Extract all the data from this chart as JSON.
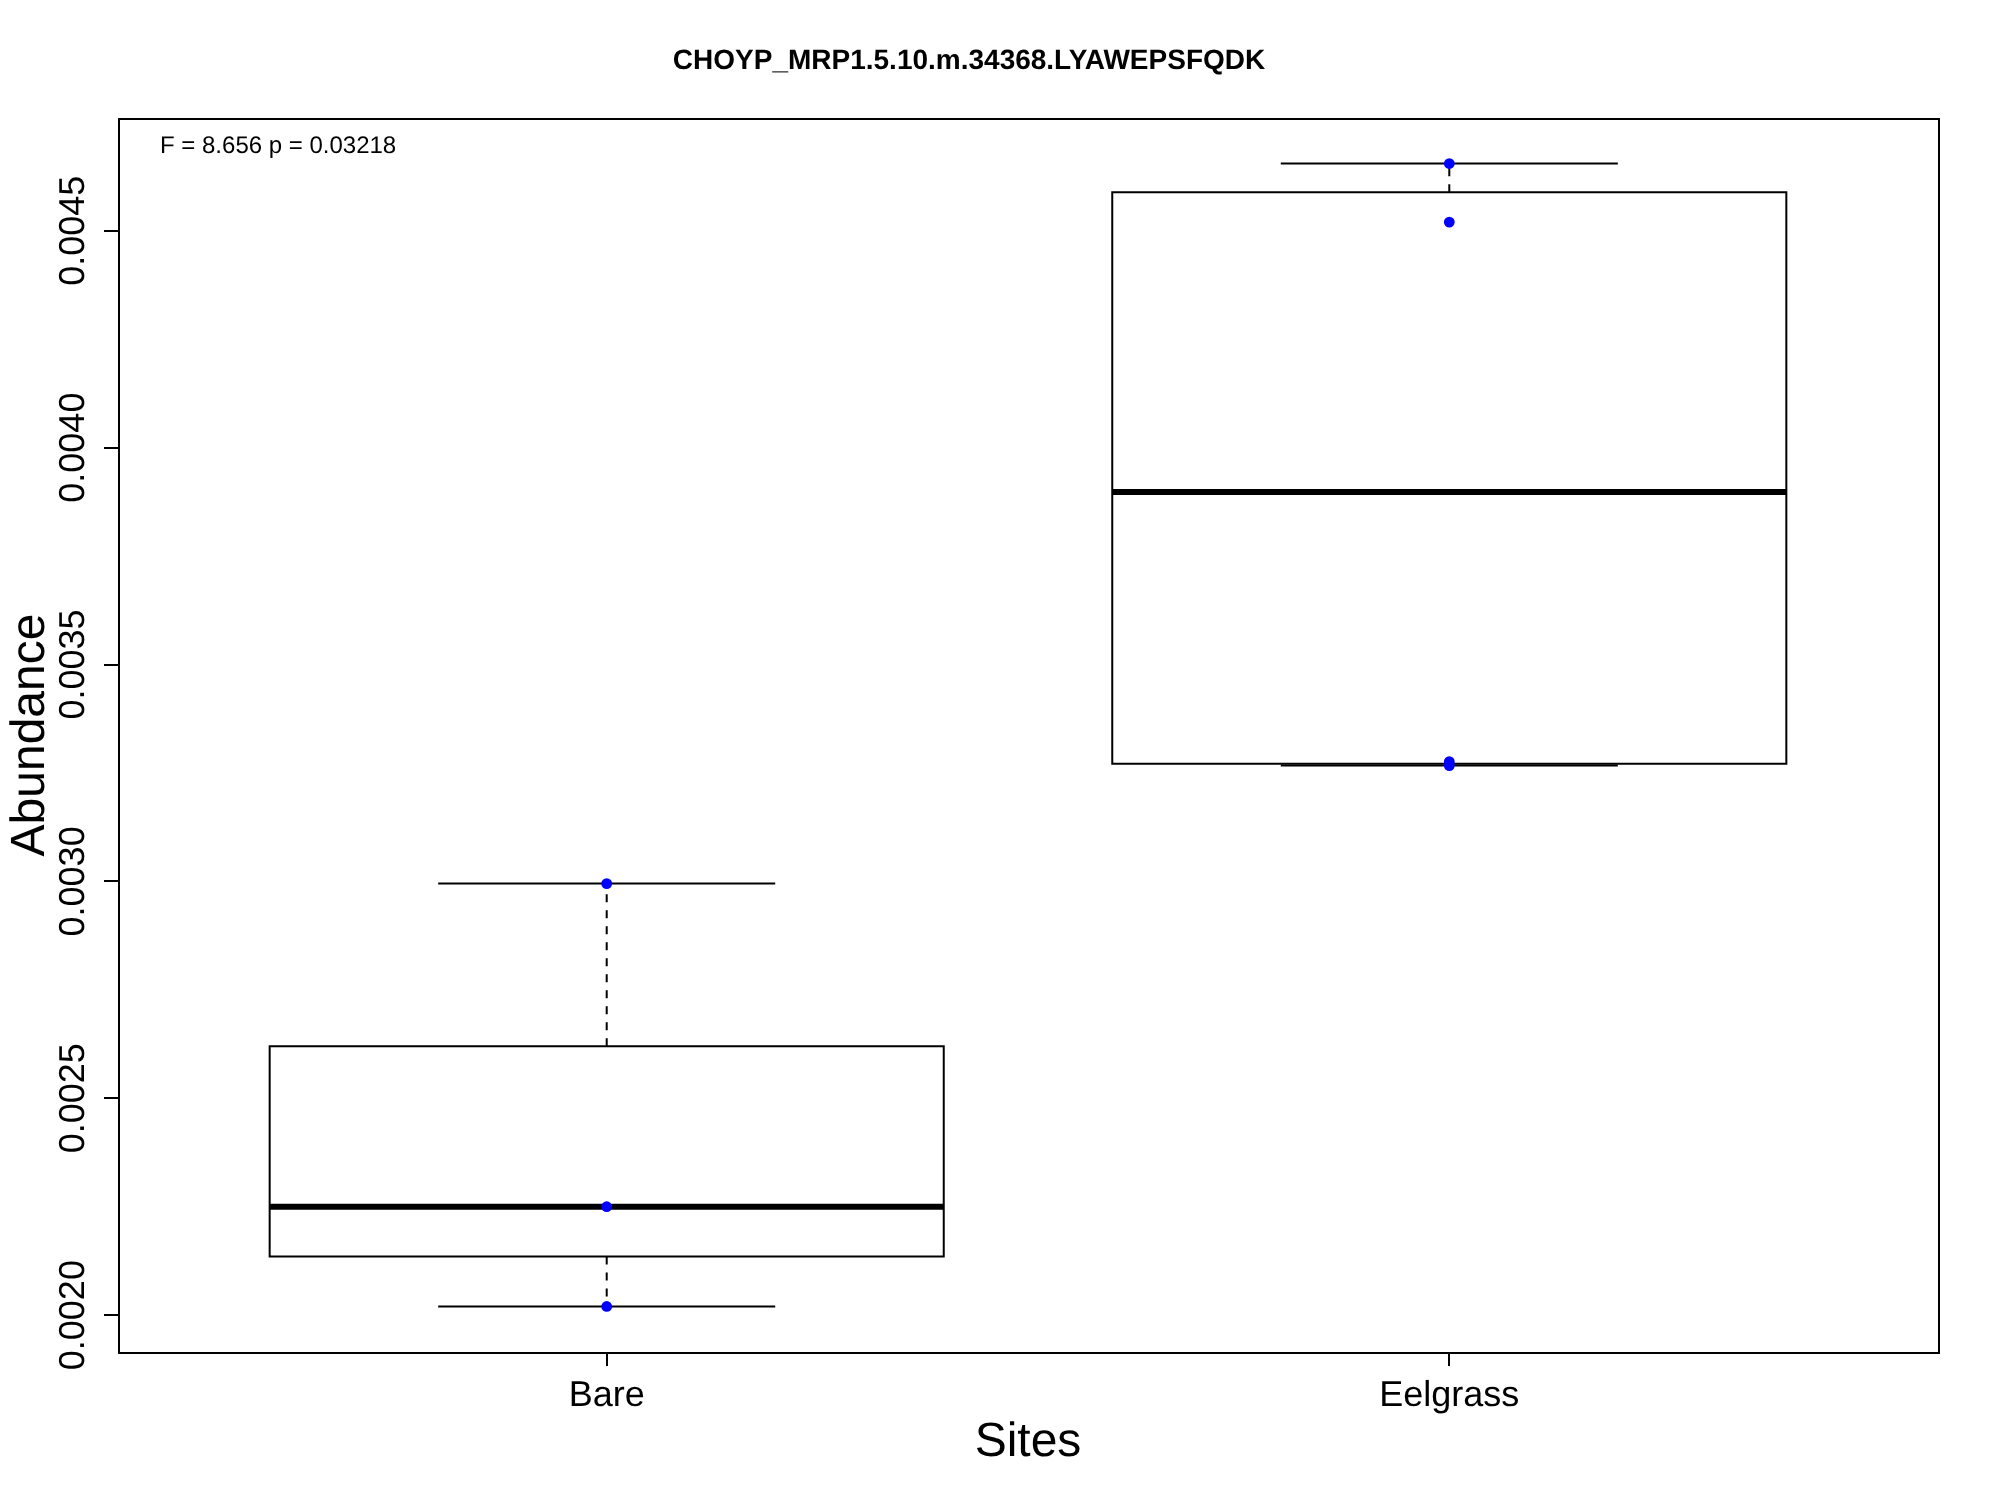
{
  "chart_data": {
    "type": "box",
    "title": "CHOYP_MRP1.5.10.m.34368.LYAWEPSFQDK",
    "xlabel": "Sites",
    "ylabel": "Abundance",
    "annotations": [
      "F = 8.656 p = 0.03218"
    ],
    "categories": [
      "Bare",
      "Eelgrass"
    ],
    "boxes": [
      {
        "low": 0.00202,
        "q1": 0.002135,
        "median": 0.00225,
        "q3": 0.00262,
        "high": 0.002995
      },
      {
        "low": 0.003267,
        "q1": 0.003271,
        "median": 0.003898,
        "q3": 0.004589,
        "high": 0.004655
      }
    ],
    "series": [
      {
        "type": "scatter",
        "color": "#0000ff",
        "x": [
          "Bare",
          "Bare",
          "Bare",
          "Eelgrass",
          "Eelgrass",
          "Eelgrass",
          "Eelgrass"
        ],
        "values": [
          0.002995,
          0.00225,
          0.00202,
          0.004655,
          0.00452,
          0.003267,
          0.003276
        ]
      }
    ],
    "marker": "circle",
    "ylim": [
      0.001915,
      0.00476
    ],
    "yticks": [
      {
        "value": 0.002,
        "label": "0.0020"
      },
      0.0025,
      {
        "value": 0.003,
        "label": "0.0030"
      },
      0.0035,
      {
        "value": 0.004,
        "label": "0.0040"
      },
      0.0045
    ]
  }
}
